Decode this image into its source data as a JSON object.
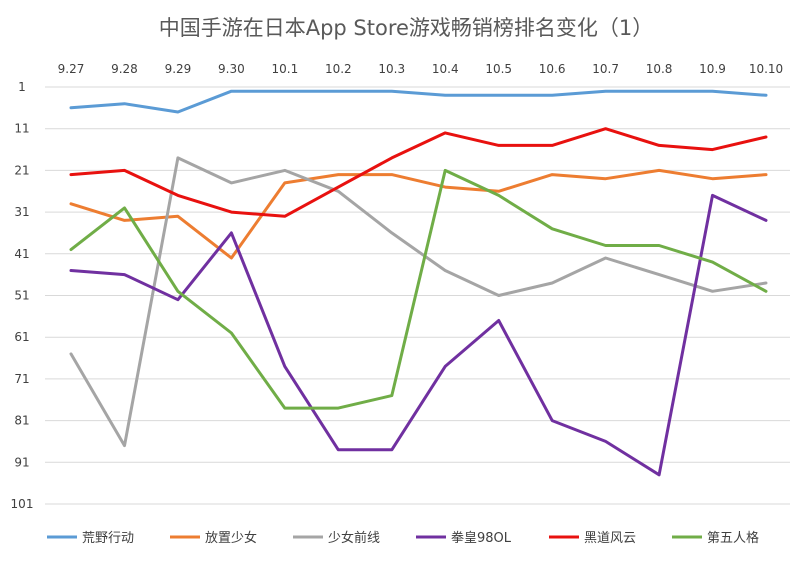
{
  "chart_data": {
    "type": "line",
    "title": "中国手游在日本App Store游戏畅销榜排名变化（1）",
    "xlabel": "",
    "ylabel": "",
    "y_reversed": true,
    "y_ticks": [
      "1",
      "11",
      "21",
      "31",
      "41",
      "51",
      "61",
      "71",
      "81",
      "91",
      "101"
    ],
    "ylim": [
      1,
      101
    ],
    "x_axis_position": "top",
    "grid": true,
    "legend_position": "bottom",
    "categories": [
      "9.27",
      "9.28",
      "9.29",
      "9.30",
      "10.1",
      "10.2",
      "10.3",
      "10.4",
      "10.5",
      "10.6",
      "10.7",
      "10.8",
      "10.9",
      "10.10"
    ],
    "series": [
      {
        "name": "荒野行动",
        "color": "#5B9BD5",
        "values": [
          6,
          5,
          7,
          2,
          2,
          2,
          2,
          3,
          3,
          3,
          2,
          2,
          2,
          3
        ]
      },
      {
        "name": "放置少女",
        "color": "#ED7D31",
        "values": [
          29,
          33,
          32,
          42,
          24,
          22,
          22,
          25,
          26,
          22,
          23,
          21,
          23,
          22
        ]
      },
      {
        "name": "少女前线",
        "color": "#A5A5A5",
        "values": [
          65,
          87,
          18,
          24,
          21,
          26,
          36,
          45,
          51,
          48,
          42,
          46,
          50,
          48
        ]
      },
      {
        "name": "拳皇98OL",
        "color": "#7030A0",
        "values": [
          45,
          46,
          52,
          36,
          68,
          88,
          88,
          68,
          57,
          81,
          86,
          94,
          27,
          33
        ]
      },
      {
        "name": "黑道风云",
        "color": "#E8110F",
        "values": [
          22,
          21,
          27,
          31,
          32,
          25,
          18,
          12,
          15,
          15,
          11,
          15,
          16,
          13
        ]
      },
      {
        "name": "第五人格",
        "color": "#70AD47",
        "values": [
          40,
          30,
          50,
          60,
          78,
          78,
          75,
          21,
          27,
          35,
          39,
          39,
          43,
          50
        ]
      }
    ]
  }
}
